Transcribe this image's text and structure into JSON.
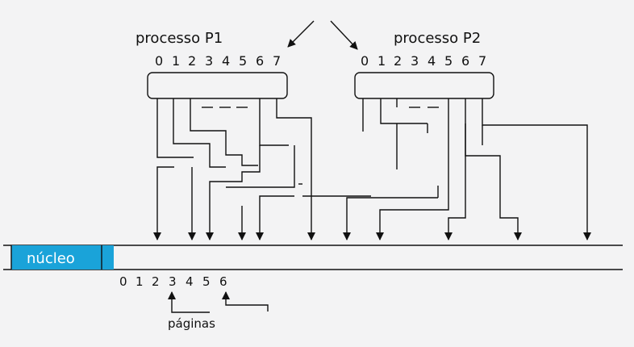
{
  "process_p1": {
    "label": "processo P1",
    "indices": [
      "0",
      "1",
      "2",
      "3",
      "4",
      "5",
      "6",
      "7"
    ]
  },
  "process_p2": {
    "label": "processo P2",
    "indices": [
      "0",
      "1",
      "2",
      "3",
      "4",
      "5",
      "6",
      "7"
    ]
  },
  "memory": {
    "kernel_label": "núcleo",
    "page_indices": [
      "0",
      "1",
      "2",
      "3",
      "4",
      "5",
      "6"
    ],
    "pages_label": "páginas"
  },
  "colors": {
    "line": "#111111",
    "kernel_fill": "#1aa3d9",
    "kernel_text": "#ffffff",
    "background": "#f3f3f4"
  }
}
